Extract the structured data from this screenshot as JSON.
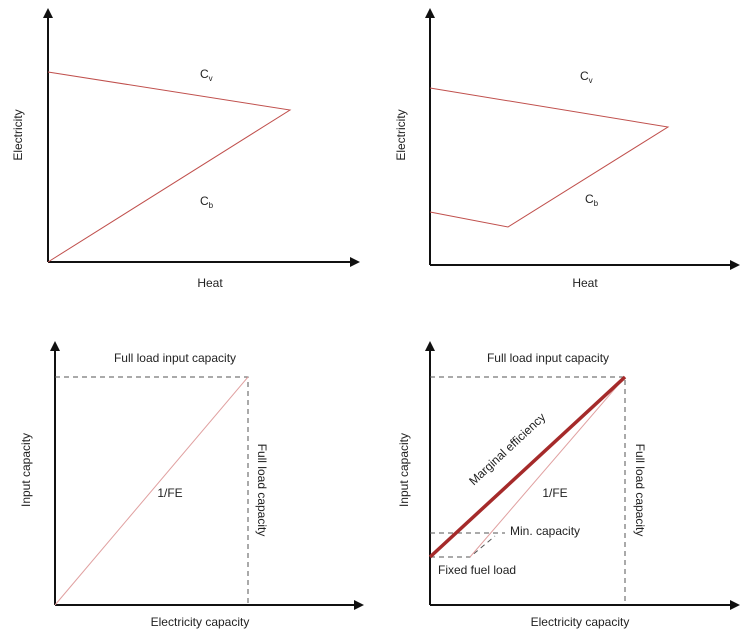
{
  "panels": [
    {
      "y_label": "Electricity",
      "x_label": "Heat",
      "upper_line": {
        "main": "C",
        "sub": "v"
      },
      "lower_line": {
        "main": "C",
        "sub": "b"
      }
    },
    {
      "y_label": "Electricity",
      "x_label": "Heat",
      "upper_line": {
        "main": "C",
        "sub": "v"
      },
      "lower_line": {
        "main": "C",
        "sub": "b"
      }
    },
    {
      "y_label": "Input capacity",
      "x_label": "Electricity capacity",
      "top_label": "Full load input capacity",
      "right_label": "Full load capacity",
      "line_label": "1/FE"
    },
    {
      "y_label": "Input capacity",
      "x_label": "Electricity capacity",
      "top_label": "Full load input capacity",
      "right_label": "Full load capacity",
      "line_label": "1/FE",
      "thick_line_label": "Marginal efficiency",
      "min_label": "Min. capacity",
      "fixed_label": "Fixed fuel load"
    }
  ]
}
